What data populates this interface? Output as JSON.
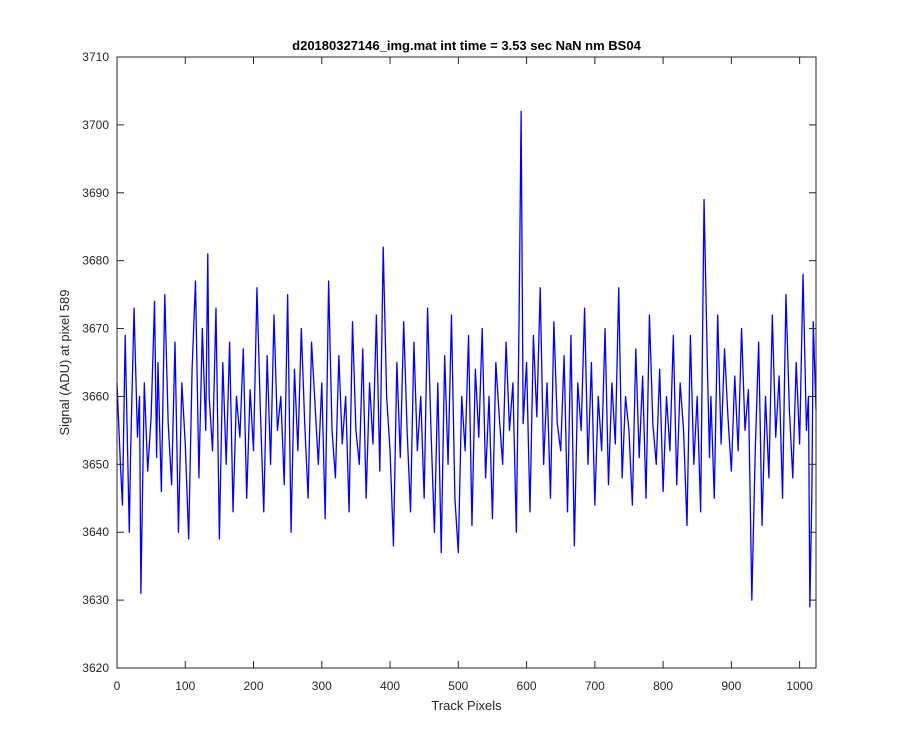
{
  "chart_data": {
    "type": "line",
    "title": "d20180327146_img.mat int time = 3.53 sec  NaN nm BS04",
    "xlabel": "Track Pixels",
    "ylabel": "Signal (ADU) at pixel 589",
    "xlim": [
      0,
      1024
    ],
    "ylim": [
      3620,
      3710
    ],
    "xticks": [
      0,
      100,
      200,
      300,
      400,
      500,
      600,
      700,
      800,
      900,
      1000
    ],
    "yticks": [
      3620,
      3630,
      3640,
      3650,
      3660,
      3670,
      3680,
      3690,
      3700,
      3710
    ],
    "grid": false,
    "series_color": "#0000ff",
    "series": [
      {
        "x": [
          0,
          5,
          8,
          12,
          18,
          20,
          25,
          30,
          33,
          35,
          40,
          45,
          50,
          55,
          58,
          60,
          65,
          70,
          75,
          80,
          85,
          90,
          95,
          100,
          105,
          110,
          115,
          120,
          125,
          130,
          133,
          135,
          140,
          145,
          150,
          155,
          160,
          165,
          170,
          175,
          180,
          185,
          190,
          195,
          200,
          205,
          210,
          215,
          220,
          225,
          230,
          235,
          240,
          245,
          250,
          255,
          260,
          265,
          270,
          275,
          280,
          285,
          290,
          295,
          300,
          305,
          310,
          315,
          320,
          325,
          330,
          335,
          340,
          345,
          350,
          355,
          360,
          365,
          370,
          375,
          380,
          385,
          390,
          395,
          400,
          405,
          410,
          415,
          420,
          425,
          430,
          435,
          440,
          445,
          450,
          455,
          460,
          465,
          470,
          475,
          480,
          485,
          490,
          495,
          500,
          505,
          510,
          515,
          520,
          525,
          530,
          535,
          540,
          545,
          550,
          555,
          560,
          565,
          570,
          575,
          580,
          585,
          589,
          592,
          595,
          600,
          605,
          610,
          615,
          620,
          625,
          630,
          635,
          640,
          645,
          650,
          655,
          660,
          665,
          670,
          675,
          680,
          685,
          690,
          695,
          700,
          705,
          710,
          715,
          720,
          725,
          730,
          735,
          740,
          745,
          750,
          755,
          760,
          765,
          770,
          775,
          780,
          785,
          790,
          795,
          800,
          805,
          810,
          815,
          820,
          825,
          830,
          835,
          840,
          845,
          850,
          855,
          860,
          865,
          868,
          870,
          875,
          880,
          885,
          890,
          895,
          900,
          905,
          910,
          915,
          920,
          925,
          930,
          935,
          940,
          945,
          950,
          955,
          960,
          965,
          970,
          975,
          980,
          985,
          990,
          995,
          1000,
          1005,
          1010,
          1013,
          1015,
          1018,
          1020,
          1024
        ],
        "y": [
          3662,
          3650,
          3644,
          3669,
          3640,
          3652,
          3673,
          3654,
          3660,
          3631,
          3662,
          3649,
          3657,
          3674,
          3651,
          3665,
          3646,
          3675,
          3656,
          3647,
          3668,
          3640,
          3662,
          3653,
          3639,
          3664,
          3677,
          3648,
          3670,
          3655,
          3681,
          3660,
          3652,
          3673,
          3639,
          3665,
          3650,
          3668,
          3643,
          3660,
          3654,
          3667,
          3645,
          3661,
          3652,
          3676,
          3658,
          3643,
          3666,
          3650,
          3672,
          3655,
          3660,
          3647,
          3675,
          3640,
          3664,
          3652,
          3670,
          3656,
          3645,
          3668,
          3659,
          3650,
          3662,
          3642,
          3677,
          3655,
          3648,
          3666,
          3653,
          3660,
          3643,
          3671,
          3655,
          3650,
          3667,
          3645,
          3662,
          3653,
          3672,
          3649,
          3682,
          3660,
          3652,
          3638,
          3665,
          3651,
          3671,
          3655,
          3643,
          3668,
          3652,
          3660,
          3645,
          3673,
          3655,
          3640,
          3662,
          3637,
          3666,
          3650,
          3672,
          3645,
          3637,
          3660,
          3652,
          3669,
          3641,
          3664,
          3654,
          3670,
          3648,
          3660,
          3642,
          3665,
          3657,
          3650,
          3668,
          3655,
          3662,
          3640,
          3671,
          3702,
          3656,
          3665,
          3643,
          3669,
          3657,
          3676,
          3650,
          3662,
          3645,
          3671,
          3656,
          3652,
          3666,
          3643,
          3669,
          3638,
          3662,
          3655,
          3673,
          3650,
          3665,
          3644,
          3660,
          3652,
          3670,
          3647,
          3662,
          3653,
          3676,
          3648,
          3660,
          3655,
          3644,
          3667,
          3651,
          3663,
          3645,
          3672,
          3656,
          3650,
          3664,
          3646,
          3660,
          3652,
          3669,
          3647,
          3662,
          3655,
          3641,
          3669,
          3650,
          3660,
          3643,
          3689,
          3664,
          3651,
          3660,
          3645,
          3672,
          3653,
          3667,
          3657,
          3649,
          3663,
          3652,
          3670,
          3655,
          3661,
          3630,
          3652,
          3668,
          3641,
          3660,
          3648,
          3672,
          3654,
          3663,
          3645,
          3675,
          3658,
          3648,
          3665,
          3653,
          3678,
          3655,
          3660,
          3629,
          3646,
          3671,
          3658
        ]
      }
    ]
  }
}
